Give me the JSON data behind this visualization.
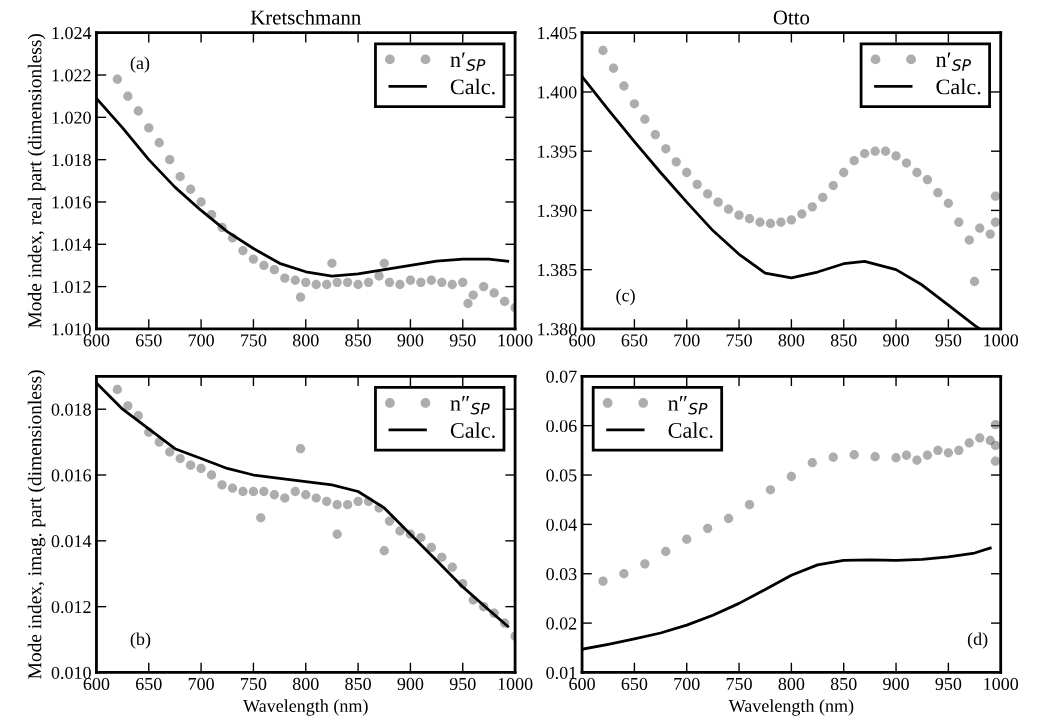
{
  "chart_data": [
    {
      "type": "scatter",
      "title": "Kretschmann",
      "ylabel": "Mode index, real part (dimensionless)",
      "annotations": [
        "(a)"
      ],
      "legend": "top right",
      "grid": false,
      "xlim": [
        600,
        1000
      ],
      "xticks": [
        600,
        650,
        700,
        750,
        800,
        850,
        900,
        950,
        1000
      ],
      "ylim": [
        1.01,
        1.024
      ],
      "yticks": [
        {
          "value": 1.01,
          "label": "1.010"
        },
        {
          "value": 1.012,
          "label": "1.012"
        },
        {
          "value": 1.014,
          "label": "1.014"
        },
        {
          "value": 1.016,
          "label": "1.016"
        },
        {
          "value": 1.018,
          "label": "1.018"
        },
        {
          "value": 1.02,
          "label": "1.020"
        },
        {
          "value": 1.022,
          "label": "1.022"
        },
        {
          "value": 1.024,
          "label": "1.024"
        }
      ],
      "series": [
        {
          "name": "n′$_{SP}$",
          "marker": "circle",
          "color": "#595d59",
          "x": [
            620,
            630,
            640,
            650,
            660,
            670,
            680,
            690,
            700,
            710,
            720,
            730,
            740,
            750,
            760,
            770,
            780,
            790,
            795,
            800,
            810,
            820,
            825,
            830,
            840,
            850,
            860,
            870,
            875,
            880,
            890,
            900,
            910,
            920,
            930,
            940,
            950,
            955,
            960,
            970,
            980,
            990,
            1000
          ],
          "values": [
            1.0218,
            1.021,
            1.0203,
            1.0195,
            1.0188,
            1.018,
            1.0172,
            1.0166,
            1.016,
            1.0154,
            1.0148,
            1.0143,
            1.0137,
            1.0133,
            1.013,
            1.0128,
            1.0124,
            1.0123,
            1.0115,
            1.0122,
            1.0121,
            1.0121,
            1.0131,
            1.0122,
            1.0122,
            1.0121,
            1.0122,
            1.0125,
            1.0131,
            1.0122,
            1.0121,
            1.0123,
            1.0122,
            1.0123,
            1.0122,
            1.0121,
            1.0122,
            1.0112,
            1.0116,
            1.012,
            1.0117,
            1.0113,
            1.011
          ]
        },
        {
          "name": "Calc.",
          "type": "line",
          "marker": "none",
          "line_style": "solid",
          "color": "#000000",
          "x": [
            600,
            625,
            650,
            675,
            700,
            725,
            750,
            775,
            800,
            825,
            850,
            875,
            900,
            925,
            950,
            975,
            993
          ],
          "values": [
            1.0209,
            1.0195,
            1.018,
            1.0167,
            1.0156,
            1.0146,
            1.0138,
            1.0131,
            1.0127,
            1.0125,
            1.0126,
            1.0128,
            1.013,
            1.0132,
            1.0133,
            1.0133,
            1.0132
          ]
        }
      ]
    },
    {
      "type": "scatter",
      "title": "Otto",
      "annotations": [
        "(c)"
      ],
      "legend": "top right",
      "grid": false,
      "xlim": [
        600,
        1000
      ],
      "xticks": [
        600,
        650,
        700,
        750,
        800,
        850,
        900,
        950,
        1000
      ],
      "ylim": [
        1.38,
        1.405
      ],
      "yticks": [
        {
          "value": 1.38,
          "label": "1.380"
        },
        1.385,
        {
          "value": 1.39,
          "label": "1.390"
        },
        1.395,
        {
          "value": 1.4,
          "label": "1.400"
        },
        1.405
      ],
      "series": [
        {
          "name": "n′$_{SP}$",
          "marker": "circle",
          "color": "#595d59",
          "x": [
            620,
            630,
            640,
            650,
            660,
            670,
            680,
            690,
            700,
            710,
            720,
            730,
            740,
            750,
            760,
            770,
            780,
            790,
            800,
            810,
            820,
            830,
            840,
            850,
            860,
            870,
            880,
            890,
            900,
            910,
            920,
            930,
            940,
            950,
            960,
            970,
            975,
            980,
            990,
            995,
            995
          ],
          "values": [
            1.4035,
            1.402,
            1.4005,
            1.399,
            1.3977,
            1.3964,
            1.3952,
            1.3941,
            1.3932,
            1.3922,
            1.3914,
            1.3907,
            1.3901,
            1.3896,
            1.3893,
            1.389,
            1.3889,
            1.389,
            1.3892,
            1.3897,
            1.3903,
            1.3911,
            1.3921,
            1.3932,
            1.3942,
            1.3948,
            1.395,
            1.395,
            1.3946,
            1.394,
            1.3932,
            1.3926,
            1.3915,
            1.3906,
            1.389,
            1.3875,
            1.384,
            1.3885,
            1.388,
            1.389,
            1.3912
          ]
        },
        {
          "name": "Calc.",
          "type": "line",
          "marker": "none",
          "line_style": "solid",
          "color": "#000000",
          "x": [
            600,
            625,
            650,
            675,
            700,
            725,
            750,
            775,
            800,
            825,
            850,
            870,
            900,
            925,
            950,
            975,
            980
          ],
          "values": [
            1.4013,
            1.3985,
            1.3958,
            1.3932,
            1.3907,
            1.3883,
            1.3863,
            1.3847,
            1.3843,
            1.3848,
            1.3855,
            1.3857,
            1.385,
            1.3837,
            1.382,
            1.3803,
            1.38
          ]
        }
      ]
    },
    {
      "type": "scatter",
      "xlabel": "Wavelength (nm)",
      "ylabel": "Mode index, imag. part (dimensionless)",
      "annotations": [
        "(b)"
      ],
      "legend": "top right",
      "grid": false,
      "xlim": [
        600,
        1000
      ],
      "xticks": [
        600,
        650,
        700,
        750,
        800,
        850,
        900,
        950,
        1000
      ],
      "ylim": [
        0.01,
        0.019
      ],
      "yticks": [
        {
          "value": 0.01,
          "label": "0.010"
        },
        0.012,
        0.014,
        0.016,
        0.018
      ],
      "series": [
        {
          "name": "n″$_{SP}$",
          "marker": "circle",
          "color": "#595d59",
          "x": [
            620,
            630,
            640,
            650,
            660,
            670,
            680,
            690,
            700,
            710,
            720,
            730,
            740,
            750,
            757,
            760,
            770,
            780,
            790,
            795,
            800,
            810,
            820,
            830,
            830,
            840,
            850,
            860,
            870,
            875,
            880,
            890,
            900,
            910,
            920,
            930,
            940,
            950,
            960,
            970,
            980,
            990,
            1000
          ],
          "values": [
            0.0186,
            0.0181,
            0.0178,
            0.0173,
            0.017,
            0.0167,
            0.0165,
            0.0163,
            0.0162,
            0.016,
            0.0157,
            0.0156,
            0.0155,
            0.0155,
            0.0147,
            0.0155,
            0.0154,
            0.0153,
            0.0155,
            0.0168,
            0.0154,
            0.0153,
            0.0152,
            0.0151,
            0.0142,
            0.0151,
            0.0152,
            0.0152,
            0.015,
            0.0137,
            0.0146,
            0.0143,
            0.0142,
            0.0141,
            0.0138,
            0.0135,
            0.0132,
            0.0127,
            0.0122,
            0.012,
            0.0118,
            0.0115,
            0.0111
          ]
        },
        {
          "name": "Calc.",
          "type": "line",
          "marker": "none",
          "line_style": "solid",
          "color": "#000000",
          "x": [
            600,
            625,
            650,
            675,
            700,
            725,
            750,
            775,
            800,
            825,
            850,
            875,
            900,
            925,
            950,
            975,
            993
          ],
          "values": [
            0.0188,
            0.018,
            0.0174,
            0.0168,
            0.0165,
            0.0162,
            0.016,
            0.0159,
            0.0158,
            0.0157,
            0.0155,
            0.015,
            0.0142,
            0.0134,
            0.0126,
            0.0119,
            0.0114
          ]
        }
      ]
    },
    {
      "type": "scatter",
      "xlabel": "Wavelength (nm)",
      "annotations": [
        "(d)"
      ],
      "legend": "top left",
      "grid": false,
      "xlim": [
        600,
        1000
      ],
      "xticks": [
        600,
        650,
        700,
        750,
        800,
        850,
        900,
        950,
        1000
      ],
      "ylim": [
        0.01,
        0.07
      ],
      "yticks": [
        0.01,
        0.02,
        0.03,
        0.04,
        0.05,
        0.06,
        0.07
      ],
      "series": [
        {
          "name": "n″$_{SP}$",
          "marker": "circle",
          "color": "#595d59",
          "x": [
            620,
            640,
            660,
            680,
            700,
            720,
            740,
            760,
            780,
            800,
            820,
            840,
            860,
            880,
            900,
            910,
            920,
            930,
            940,
            950,
            960,
            970,
            980,
            990,
            995,
            995,
            995
          ],
          "values": [
            0.0285,
            0.03,
            0.032,
            0.0345,
            0.037,
            0.0392,
            0.0412,
            0.044,
            0.047,
            0.0497,
            0.0525,
            0.0536,
            0.0541,
            0.0537,
            0.0535,
            0.054,
            0.053,
            0.054,
            0.055,
            0.0545,
            0.055,
            0.0565,
            0.0575,
            0.057,
            0.056,
            0.0602,
            0.0528
          ]
        },
        {
          "name": "Calc.",
          "type": "line",
          "marker": "none",
          "line_style": "solid",
          "color": "#000000",
          "x": [
            600,
            625,
            650,
            675,
            700,
            725,
            750,
            775,
            800,
            825,
            850,
            875,
            900,
            925,
            950,
            975,
            990
          ],
          "values": [
            0.0147,
            0.0157,
            0.0168,
            0.018,
            0.0196,
            0.0216,
            0.024,
            0.0268,
            0.0297,
            0.0318,
            0.0327,
            0.0328,
            0.0327,
            0.0329,
            0.0334,
            0.0342,
            0.0352
          ]
        }
      ]
    }
  ]
}
